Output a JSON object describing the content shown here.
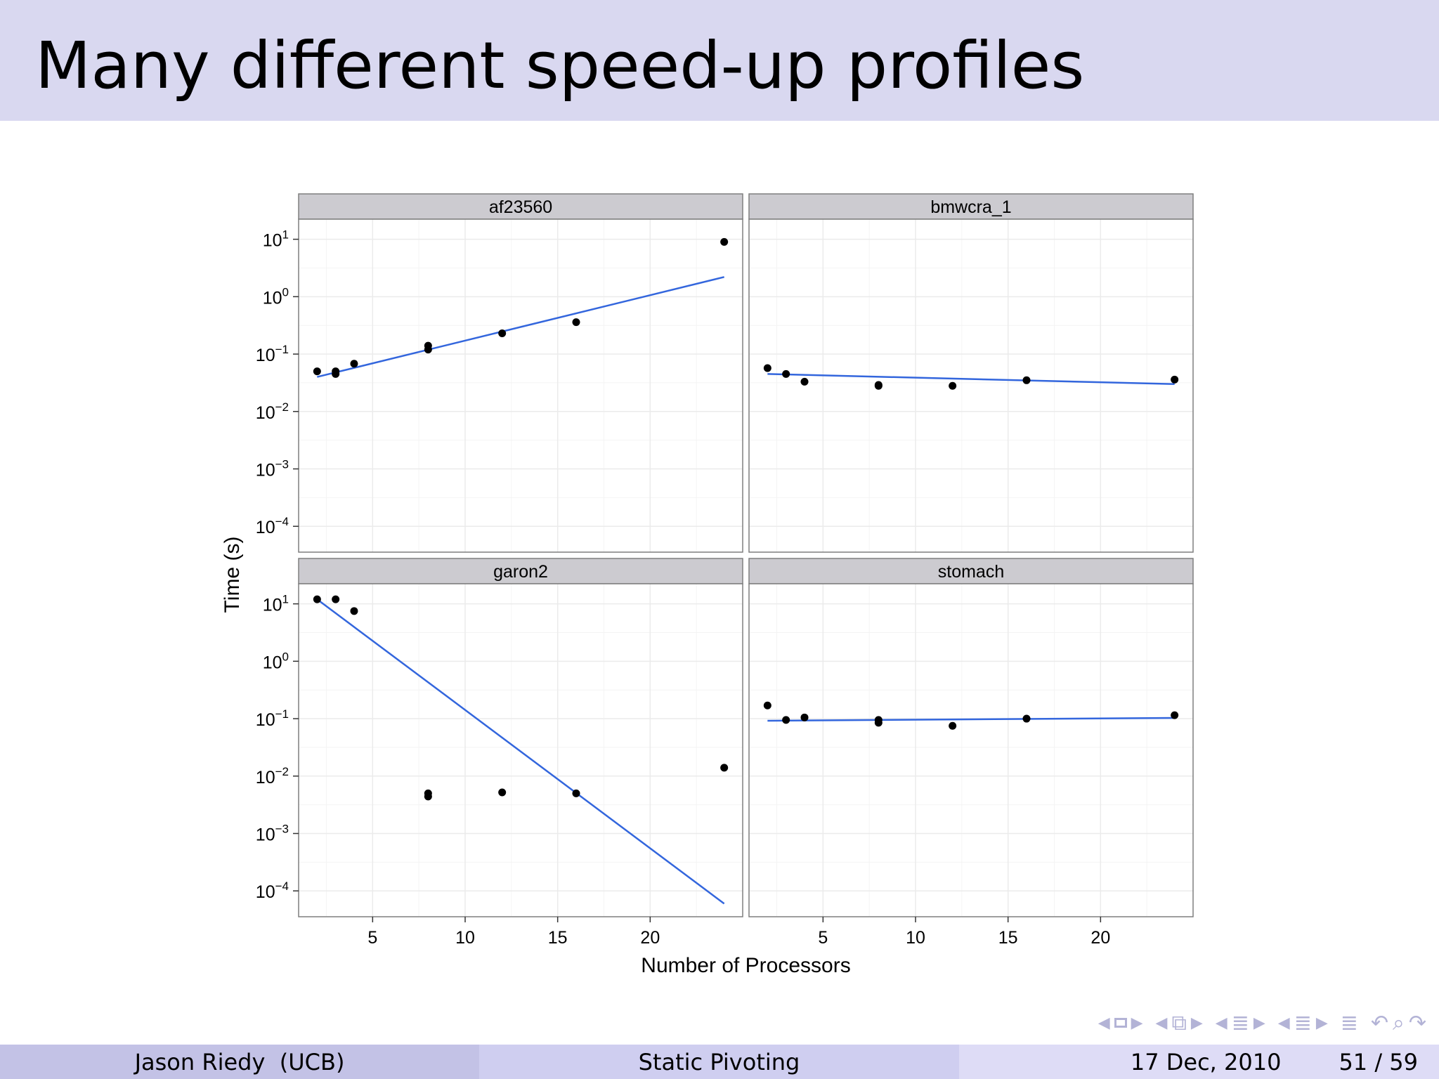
{
  "slide": {
    "title": "Many different speed-up profiles"
  },
  "footer": {
    "author": "Jason Riedy  (UCB)",
    "talk_title": "Static Pivoting",
    "date": "17 Dec, 2010",
    "page": "51 / 59"
  },
  "colors": {
    "title_bar": "#d9d8f0",
    "strip": "#cccbd0",
    "point": "#000000",
    "fit_line": "#3366dd",
    "grid": "#ebebeb"
  },
  "nav_icons": [
    "arrow-left-icon",
    "frame-icon",
    "arrow-right-icon",
    "subsection-icon",
    "section-icon",
    "align-icon",
    "search-back-icon",
    "search-icon",
    "search-forward-icon"
  ],
  "chart_data": {
    "type": "scatter",
    "xlabel": "Number of Processors",
    "ylabel": "Time (s)",
    "x_scale": "linear",
    "y_scale": "log10",
    "xlim": [
      1,
      25
    ],
    "x_ticks": [
      5,
      10,
      15,
      20
    ],
    "x_tick_labels": [
      "5",
      "10",
      "15",
      "20"
    ],
    "y_ticks_exp": [
      1,
      0,
      -1,
      -2,
      -3,
      -4
    ],
    "ylim_exp": [
      -4.45,
      1.35
    ],
    "y_tick_base": "10",
    "y_tick_exponents": [
      "1",
      "0",
      "−1",
      "−2",
      "−3",
      "−4"
    ],
    "panels": [
      {
        "name": "af23560",
        "points": [
          [
            2,
            0.05
          ],
          [
            3,
            0.045
          ],
          [
            3,
            0.05
          ],
          [
            4,
            0.068
          ],
          [
            8,
            0.12
          ],
          [
            8,
            0.14
          ],
          [
            12,
            0.23
          ],
          [
            16,
            0.36
          ],
          [
            24,
            9.0
          ]
        ],
        "fit": [
          [
            2,
            0.04
          ],
          [
            24,
            2.2
          ]
        ]
      },
      {
        "name": "bmwcra_1",
        "points": [
          [
            2,
            0.057
          ],
          [
            3,
            0.045
          ],
          [
            4,
            0.033
          ],
          [
            8,
            0.028
          ],
          [
            8,
            0.029
          ],
          [
            12,
            0.028
          ],
          [
            16,
            0.035
          ],
          [
            24,
            0.036
          ]
        ],
        "fit": [
          [
            2,
            0.045
          ],
          [
            24,
            0.03
          ]
        ]
      },
      {
        "name": "garon2",
        "points": [
          [
            2,
            12.0
          ],
          [
            3,
            12.0
          ],
          [
            4,
            7.5
          ],
          [
            8,
            0.0044
          ],
          [
            8,
            0.005
          ],
          [
            12,
            0.0052
          ],
          [
            16,
            0.005
          ],
          [
            24,
            0.014
          ]
        ],
        "fit": [
          [
            2,
            12.0
          ],
          [
            24,
            6e-05
          ]
        ]
      },
      {
        "name": "stomach",
        "points": [
          [
            2,
            0.17
          ],
          [
            3,
            0.095
          ],
          [
            4,
            0.105
          ],
          [
            8,
            0.085
          ],
          [
            8,
            0.095
          ],
          [
            12,
            0.075
          ],
          [
            16,
            0.1
          ],
          [
            24,
            0.115
          ]
        ],
        "fit": [
          [
            2,
            0.092
          ],
          [
            24,
            0.103
          ]
        ]
      }
    ]
  }
}
